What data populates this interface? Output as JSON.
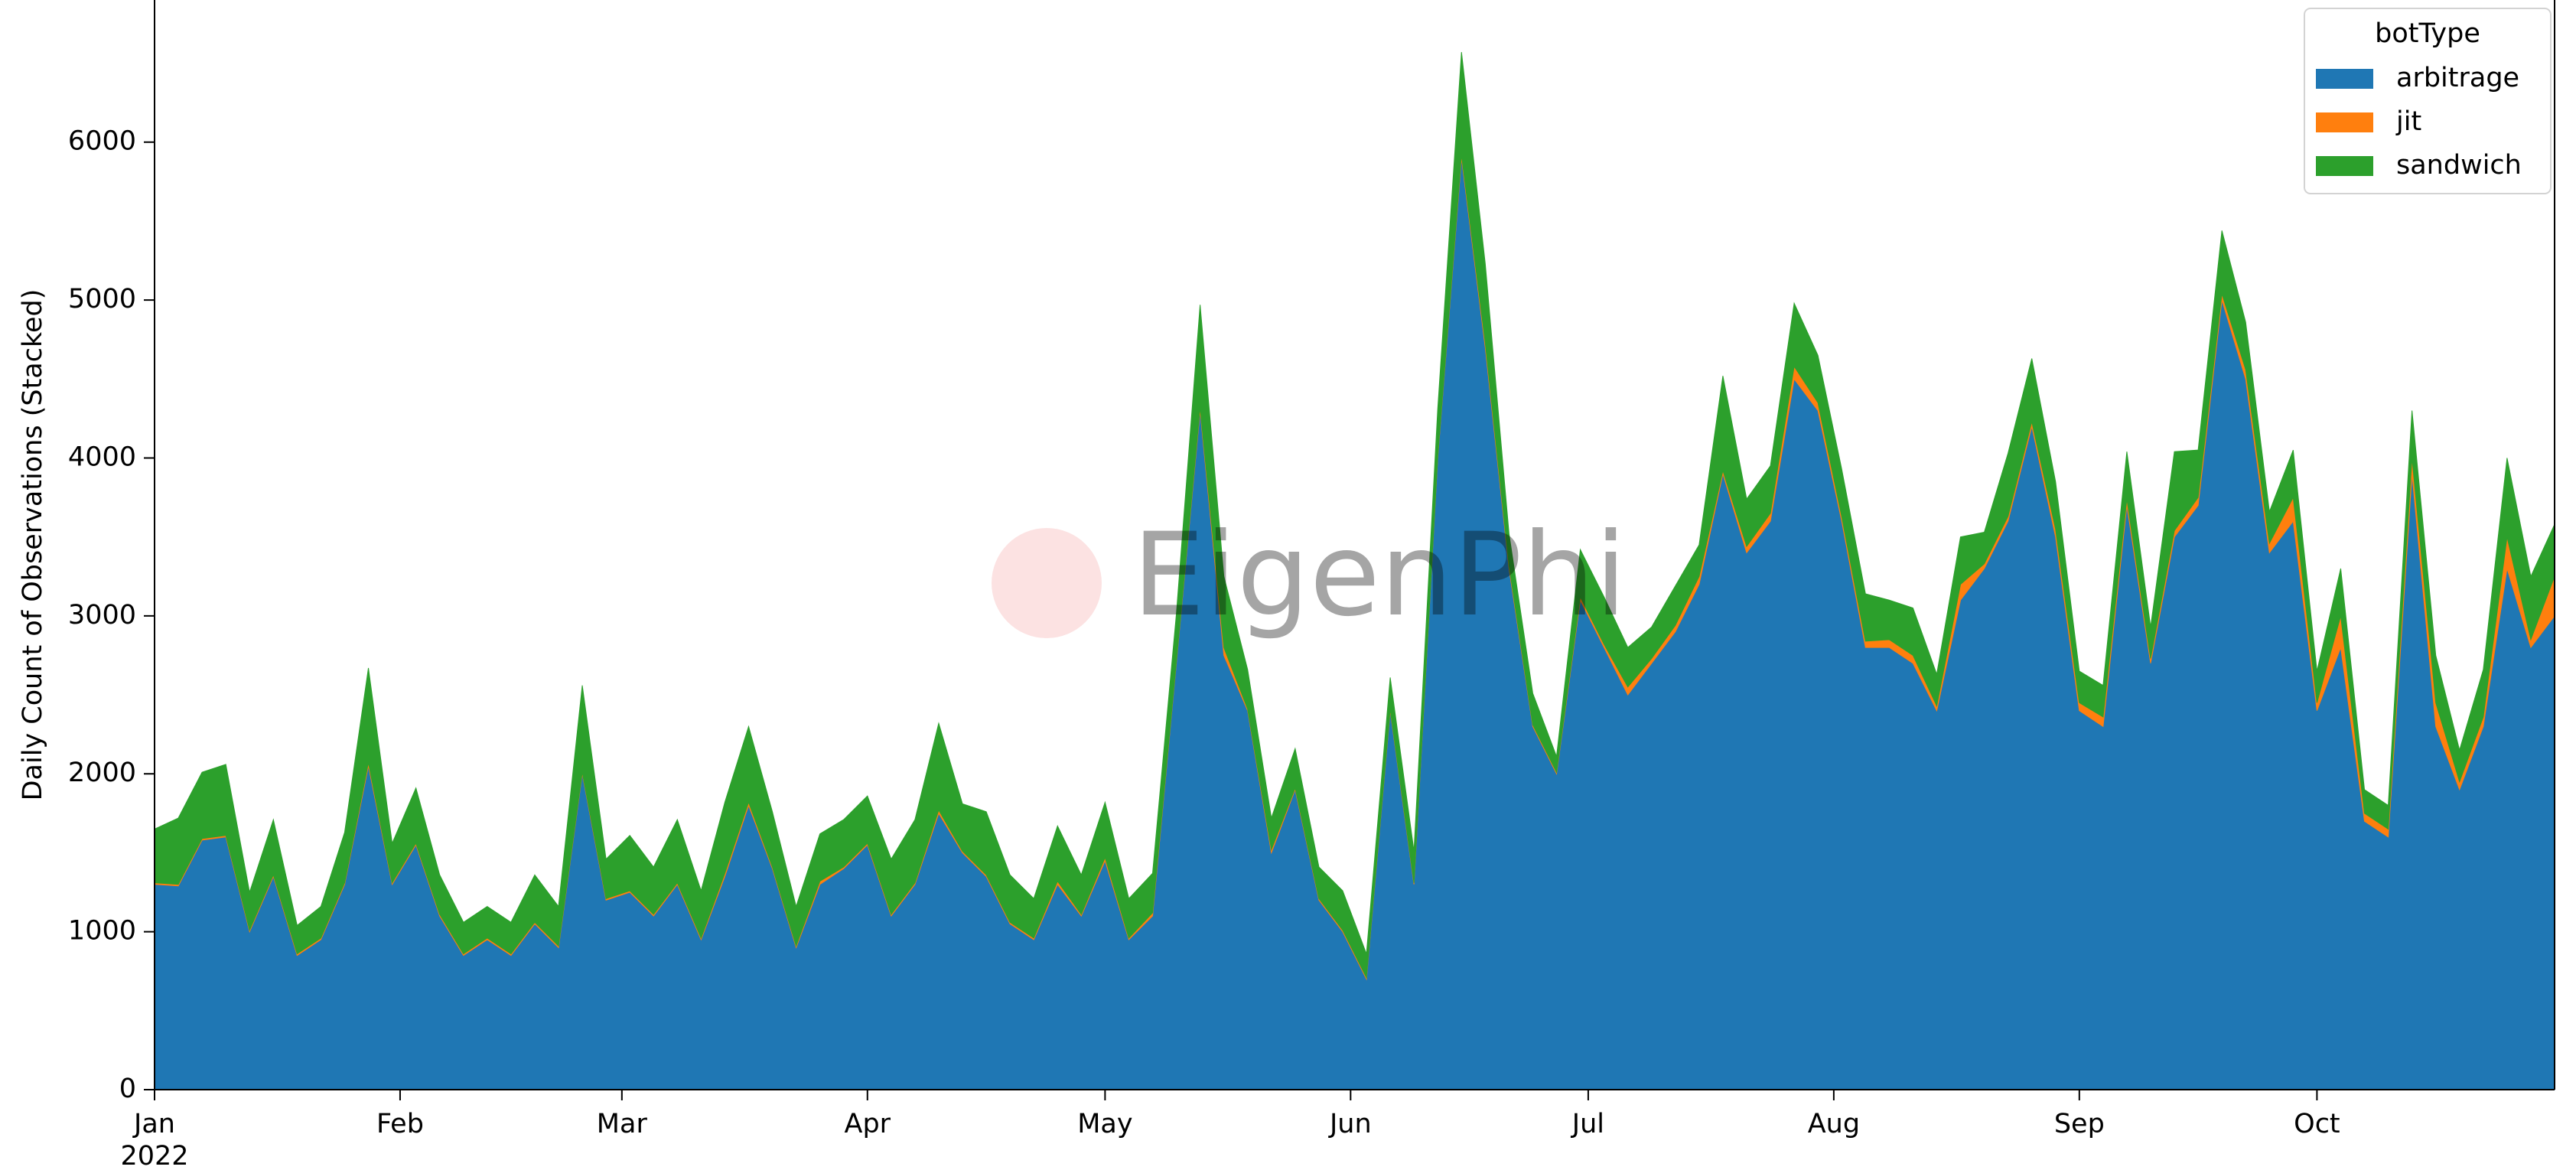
{
  "chart_data": {
    "type": "stacked_area",
    "y_label": "Daily Count of Observations (Stacked)",
    "year_label": "2022",
    "watermark": "EigenPhi",
    "legend_title": "botType",
    "legend_position": "upper right",
    "x": [
      0,
      3,
      6,
      9,
      12,
      15,
      18,
      21,
      24,
      27,
      30,
      33,
      36,
      39,
      42,
      45,
      48,
      51,
      54,
      57,
      60,
      63,
      66,
      69,
      72,
      75,
      78,
      81,
      84,
      87,
      90,
      93,
      96,
      99,
      102,
      105,
      108,
      111,
      114,
      117,
      120,
      123,
      126,
      129,
      132,
      135,
      138,
      141,
      144,
      147,
      150,
      153,
      156,
      159,
      162,
      165,
      168,
      171,
      174,
      177,
      180,
      183,
      186,
      189,
      192,
      195,
      198,
      201,
      204,
      207,
      210,
      213,
      216,
      219,
      222,
      225,
      228,
      231,
      234,
      237,
      240,
      243,
      246,
      249,
      252,
      255,
      258,
      261,
      264,
      267,
      270,
      273,
      276,
      279,
      282,
      285,
      288,
      291,
      294,
      297,
      300,
      303
    ],
    "xlim": [
      0,
      303
    ],
    "xticks": [
      {
        "value": 0,
        "label": "Jan"
      },
      {
        "value": 31,
        "label": "Feb"
      },
      {
        "value": 59,
        "label": "Mar"
      },
      {
        "value": 90,
        "label": "Apr"
      },
      {
        "value": 120,
        "label": "May"
      },
      {
        "value": 151,
        "label": "Jun"
      },
      {
        "value": 181,
        "label": "Jul"
      },
      {
        "value": 212,
        "label": "Aug"
      },
      {
        "value": 243,
        "label": "Sep"
      },
      {
        "value": 273,
        "label": "Oct"
      }
    ],
    "ylim": [
      0,
      6900
    ],
    "yticks": [
      0,
      1000,
      2000,
      3000,
      4000,
      5000,
      6000
    ],
    "series": [
      {
        "name": "arbitrage",
        "color": "#1f77b4",
        "values": [
          1300,
          1290,
          1580,
          1600,
          1000,
          1350,
          850,
          950,
          1300,
          2050,
          1300,
          1550,
          1100,
          850,
          950,
          850,
          1050,
          900,
          2000,
          1200,
          1250,
          1100,
          1300,
          950,
          1350,
          1800,
          1400,
          900,
          1300,
          1400,
          1550,
          1100,
          1300,
          1750,
          1500,
          1350,
          1050,
          950,
          1300,
          1100,
          1450,
          950,
          1100,
          2700,
          4300,
          2750,
          2400,
          1500,
          1900,
          1200,
          1000,
          700,
          2400,
          1300,
          4000,
          5900,
          4700,
          3300,
          2300,
          2000,
          3100,
          2800,
          2500,
          2700,
          2900,
          3200,
          3900,
          3400,
          3600,
          4500,
          4300,
          3600,
          2800,
          2800,
          2700,
          2400,
          3100,
          3300,
          3600,
          4200,
          3500,
          2400,
          2300,
          3700,
          2700,
          3500,
          3700,
          5000,
          4500,
          3400,
          3600,
          2400,
          2800,
          1700,
          1600,
          3900,
          2300,
          1900,
          2300,
          3300,
          2800,
          3000
        ]
      },
      {
        "name": "jit",
        "color": "#ff7f0e",
        "values": [
          10,
          10,
          10,
          10,
          10,
          10,
          10,
          10,
          10,
          20,
          10,
          10,
          10,
          10,
          10,
          10,
          10,
          10,
          10,
          10,
          10,
          10,
          10,
          10,
          20,
          20,
          10,
          10,
          20,
          10,
          10,
          10,
          10,
          20,
          10,
          10,
          10,
          10,
          20,
          10,
          20,
          10,
          20,
          10,
          20,
          50,
          10,
          20,
          10,
          10,
          10,
          10,
          10,
          10,
          10,
          20,
          30,
          20,
          10,
          10,
          20,
          20,
          50,
          30,
          40,
          50,
          20,
          40,
          50,
          80,
          50,
          30,
          40,
          50,
          50,
          30,
          100,
          30,
          30,
          30,
          50,
          50,
          60,
          40,
          30,
          40,
          50,
          40,
          60,
          60,
          150,
          50,
          200,
          50,
          50,
          100,
          150,
          50,
          60,
          200,
          50,
          250
        ]
      },
      {
        "name": "sandwich",
        "color": "#2ca02c",
        "values": [
          340,
          420,
          420,
          450,
          240,
          350,
          180,
          200,
          320,
          600,
          250,
          350,
          250,
          200,
          200,
          200,
          300,
          250,
          550,
          250,
          350,
          300,
          400,
          300,
          450,
          480,
          350,
          250,
          300,
          300,
          300,
          350,
          400,
          550,
          300,
          400,
          300,
          250,
          350,
          250,
          350,
          250,
          250,
          300,
          650,
          450,
          250,
          200,
          250,
          200,
          250,
          150,
          200,
          200,
          300,
          650,
          500,
          200,
          200,
          100,
          300,
          300,
          250,
          200,
          250,
          200,
          600,
          300,
          300,
          400,
          300,
          300,
          300,
          250,
          300,
          200,
          300,
          200,
          400,
          400,
          300,
          200,
          200,
          300,
          200,
          500,
          300,
          400,
          300,
          200,
          300,
          200,
          300,
          150,
          150,
          300,
          300,
          200,
          300,
          500,
          400,
          330
        ]
      }
    ]
  }
}
